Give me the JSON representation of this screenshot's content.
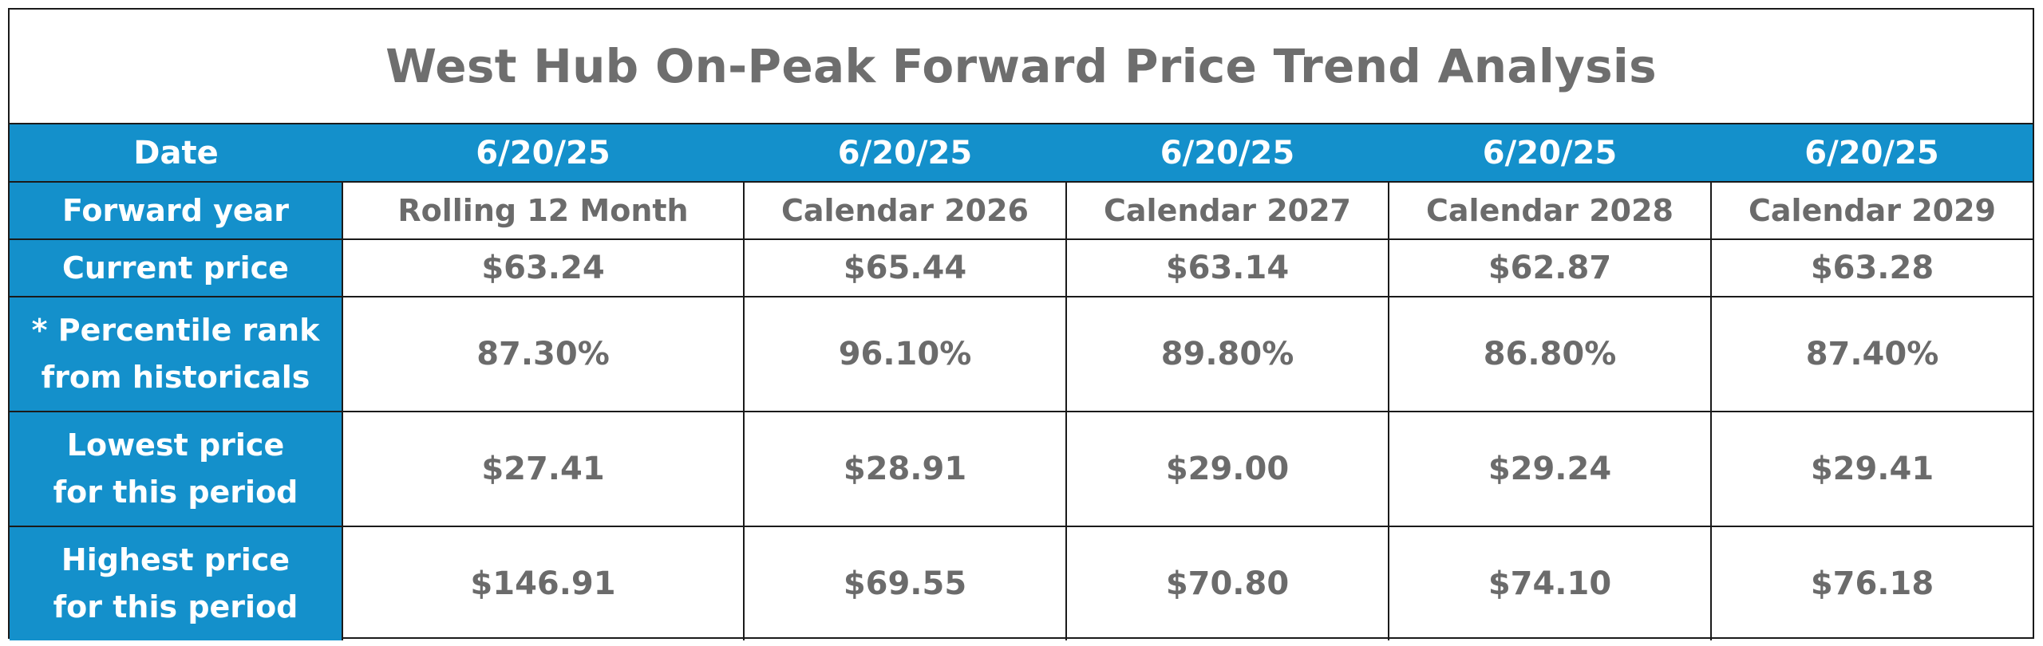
{
  "title": "West Hub On-Peak Forward Price Trend Analysis",
  "columns": [
    "Date",
    "6/20/25",
    "6/20/25",
    "6/20/25",
    "6/20/25",
    "6/20/25"
  ],
  "rows": [
    {
      "label": "Forward year",
      "values": [
        "Rolling 12 Month",
        "Calendar 2026",
        "Calendar 2027",
        "Calendar 2028",
        "Calendar 2029"
      ]
    },
    {
      "label": "Current price",
      "values": [
        "$63.24",
        "$65.44",
        "$63.14",
        "$62.87",
        "$63.28"
      ]
    },
    {
      "label_line1": "* Percentile rank",
      "label_line2": "from historicals",
      "values": [
        "87.30%",
        "96.10%",
        "89.80%",
        "86.80%",
        "87.40%"
      ]
    },
    {
      "label_line1": "Lowest price",
      "label_line2": "for this period",
      "values": [
        "$27.41",
        "$28.91",
        "$29.00",
        "$29.24",
        "$29.41"
      ]
    },
    {
      "label_line1": "Highest price",
      "label_line2": "for this period",
      "values": [
        "$146.91",
        "$69.55",
        "$70.80",
        "$74.10",
        "$76.18"
      ]
    }
  ],
  "colors": {
    "header_blue": "#1490cb",
    "body_text_gray": "#6b6b6b",
    "title_gray": "#6e6e6e",
    "border": "#1a1a1a"
  }
}
